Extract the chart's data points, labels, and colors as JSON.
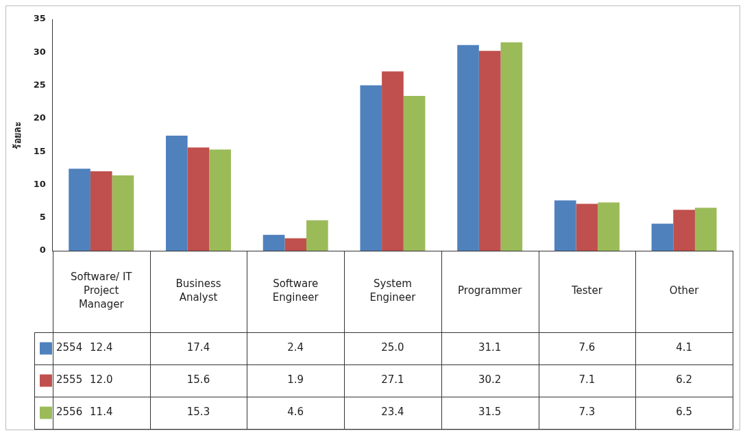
{
  "chart_data": {
    "type": "bar",
    "ylabel": "ร้อยละ",
    "categories": [
      "Software/ IT Project Manager",
      "Business Analyst",
      "Software Engineer",
      "System Engineer",
      "Programmer",
      "Tester",
      "Other"
    ],
    "series": [
      {
        "name": "2554",
        "color": "#4f81bd",
        "values": [
          12.4,
          17.4,
          2.4,
          25.0,
          31.1,
          7.6,
          4.1
        ],
        "value_labels": [
          "12.4",
          "17.4",
          "2.4",
          "25.0",
          "31.1",
          "7.6",
          "4.1"
        ]
      },
      {
        "name": "2555",
        "color": "#c0504d",
        "values": [
          12.0,
          15.6,
          1.9,
          27.1,
          30.2,
          7.1,
          6.2
        ],
        "value_labels": [
          "12.0",
          "15.6",
          "1.9",
          "27.1",
          "30.2",
          "7.1",
          "6.2"
        ]
      },
      {
        "name": "2556",
        "color": "#9bbb59",
        "values": [
          11.4,
          15.3,
          4.6,
          23.4,
          31.5,
          7.3,
          6.5
        ],
        "value_labels": [
          "11.4",
          "15.3",
          "4.6",
          "23.4",
          "31.5",
          "7.3",
          "6.5"
        ]
      }
    ],
    "ylim": [
      0,
      35
    ],
    "yticks": [
      0,
      5,
      10,
      15,
      20,
      25,
      30,
      35
    ],
    "grid": false,
    "legend": "bottom left"
  }
}
